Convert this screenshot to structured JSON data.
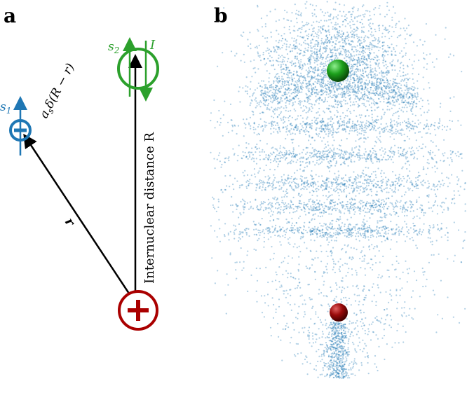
{
  "panels": {
    "a": "a",
    "b": "b"
  },
  "labels": {
    "s1": {
      "base": "s",
      "sub": "1"
    },
    "s2": {
      "base": "s",
      "sub": "2"
    },
    "current": "I",
    "interaction": {
      "base": "a",
      "sub": "s",
      "rest": "δ(R − r)"
    },
    "position": "r",
    "distance": "Internuclear distance R"
  }
}
